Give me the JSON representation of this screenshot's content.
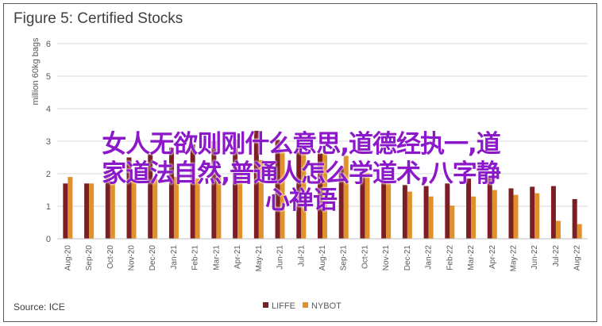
{
  "page": {
    "title": "Figure 5: Certified Stocks",
    "source": "Source: ICE"
  },
  "overlay": {
    "line1": "女人无欲则刚什么意思,道德经执一,道",
    "line2": "家道法自然,普通人怎么学道术,八字静",
    "line3": "心禅语"
  },
  "chart_data": {
    "type": "bar",
    "title": "Figure 5: Certified Stocks",
    "ylabel": "million 60kg bags",
    "xlabel": "",
    "ylim": [
      0,
      6
    ],
    "yticks": [
      0,
      1,
      2,
      3,
      4,
      5,
      6
    ],
    "grid": true,
    "legend_position": "bottom",
    "categories": [
      "Aug-20",
      "Sep-20",
      "Oct-20",
      "Nov-20",
      "Dec-20",
      "Jan-21",
      "Feb-21",
      "Mar-21",
      "Apr-21",
      "May-21",
      "Jun-21",
      "Jul-21",
      "Aug-21",
      "Sep-21",
      "Oct-21",
      "Nov-21",
      "Dec-21",
      "Jan-22",
      "Feb-22",
      "Mar-22",
      "Apr-22",
      "May-22",
      "Jun-22",
      "Jul-22",
      "Aug-22"
    ],
    "series": [
      {
        "name": "LIFFE",
        "color": "#7b1f24",
        "values": [
          1.7,
          1.7,
          2.1,
          2.5,
          2.6,
          2.8,
          2.9,
          3.0,
          3.05,
          3.32,
          3.04,
          2.88,
          2.62,
          2.18,
          1.95,
          1.8,
          1.65,
          1.62,
          1.7,
          1.85,
          1.9,
          1.55,
          1.6,
          1.62,
          1.22
        ]
      },
      {
        "name": "NYBOT",
        "color": "#e0912b",
        "values": [
          1.9,
          1.7,
          1.75,
          1.8,
          1.85,
          1.9,
          1.85,
          1.95,
          2.2,
          2.42,
          2.65,
          2.65,
          2.62,
          2.55,
          2.02,
          1.7,
          1.45,
          1.3,
          1.02,
          1.3,
          1.5,
          1.35,
          1.4,
          0.55,
          0.45
        ]
      }
    ]
  }
}
